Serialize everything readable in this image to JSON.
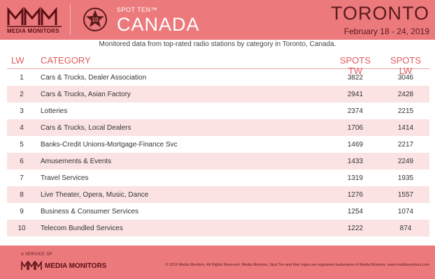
{
  "header": {
    "logo_text": "MEDIA MONITORS",
    "badge_number": "10",
    "spot_ten": "SPOT TEN™",
    "country": "CANADA",
    "city": "TORONTO",
    "dates": "February 18 - 24, 2019",
    "colors": {
      "banner": "#ec7a7d",
      "dark": "#5b1a1d",
      "header_text": "#e25a5e",
      "alt_row": "#fbe3e4"
    }
  },
  "subtitle": "Monitored data from top-rated radio stations by category in Toronto, Canada.",
  "table": {
    "headers": {
      "lw": "LW",
      "category": "CATEGORY",
      "spots_tw": "SPOTS TW",
      "spots_lw": "SPOTS LW"
    },
    "rows": [
      {
        "lw": "1",
        "category": "Cars & Trucks, Dealer Association",
        "tw": "3822",
        "slw": "3046"
      },
      {
        "lw": "2",
        "category": "Cars & Trucks, Asian Factory",
        "tw": "2941",
        "slw": "2428"
      },
      {
        "lw": "3",
        "category": "Lotteries",
        "tw": "2374",
        "slw": "2215"
      },
      {
        "lw": "4",
        "category": "Cars & Trucks, Local Dealers",
        "tw": "1706",
        "slw": "1414"
      },
      {
        "lw": "5",
        "category": "Banks-Credit Unions-Mortgage-Finance Svc",
        "tw": "1469",
        "slw": "2217"
      },
      {
        "lw": "6",
        "category": "Amusements & Events",
        "tw": "1433",
        "slw": "2249"
      },
      {
        "lw": "7",
        "category": "Travel Services",
        "tw": "1319",
        "slw": "1935"
      },
      {
        "lw": "8",
        "category": "Live Theater, Opera, Music, Dance",
        "tw": "1276",
        "slw": "1557"
      },
      {
        "lw": "9",
        "category": "Business & Consumer Services",
        "tw": "1254",
        "slw": "1074"
      },
      {
        "lw": "10",
        "category": "Telecom Bundled Services",
        "tw": "1222",
        "slw": "874"
      }
    ]
  },
  "footer": {
    "service_of": "A SERVICE OF",
    "brand": "MEDIA MONITORS",
    "copyright": "© 2019 Media Monitors. All Rights Reserved. Media Monitors, Spot Ten and their logos are registered trademarks of Media Monitors. www.mediamonitors.com"
  }
}
